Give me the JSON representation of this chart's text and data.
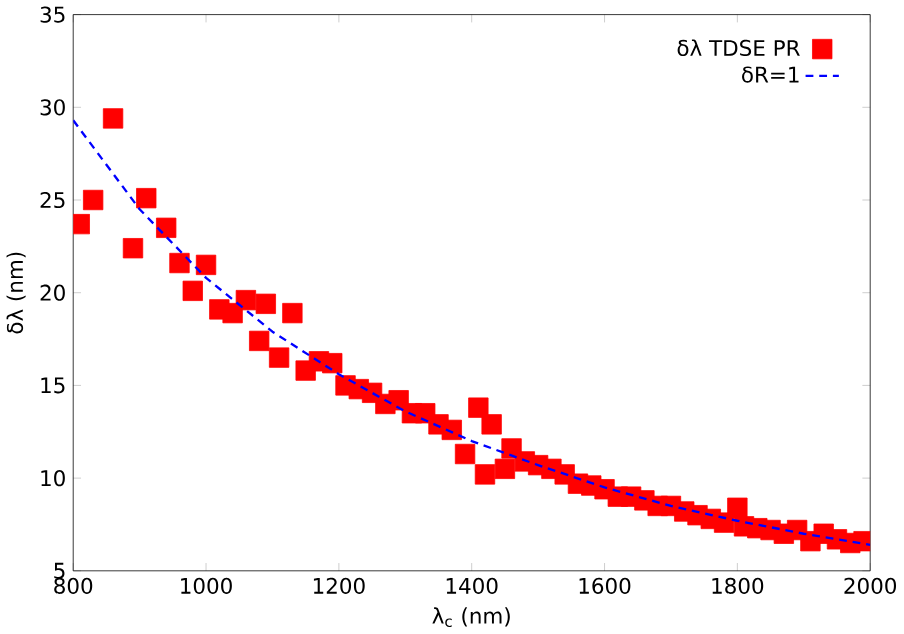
{
  "chart_data": {
    "type": "scatter",
    "xlabel": "λ$_{c}$ (nm)",
    "ylabel": "δλ (nm)",
    "xlim": [
      800,
      2000
    ],
    "ylim": [
      5,
      35
    ],
    "xticks": [
      800,
      1000,
      1200,
      1400,
      1600,
      1800,
      2000
    ],
    "yticks": [
      5,
      10,
      15,
      20,
      25,
      30,
      35
    ],
    "legend": "top right",
    "grid": false,
    "series": [
      {
        "name": "δλ TDSE PR",
        "color": "#ff0000",
        "marker": "square",
        "x": [
          810,
          830,
          860,
          890,
          910,
          940,
          960,
          980,
          1000,
          1020,
          1040,
          1060,
          1080,
          1090,
          1110,
          1130,
          1150,
          1170,
          1190,
          1210,
          1230,
          1250,
          1270,
          1290,
          1310,
          1330,
          1350,
          1370,
          1390,
          1410,
          1420,
          1430,
          1450,
          1460,
          1480,
          1500,
          1520,
          1540,
          1560,
          1580,
          1600,
          1620,
          1640,
          1660,
          1680,
          1700,
          1720,
          1740,
          1760,
          1780,
          1800,
          1810,
          1830,
          1850,
          1870,
          1890,
          1910,
          1930,
          1950,
          1970,
          1990
        ],
        "values": [
          23.7,
          25.0,
          29.4,
          22.4,
          25.1,
          23.5,
          21.6,
          20.1,
          21.5,
          19.1,
          18.9,
          19.6,
          17.4,
          19.4,
          16.5,
          18.9,
          15.8,
          16.3,
          16.2,
          15.0,
          14.8,
          14.6,
          14.0,
          14.2,
          13.5,
          13.5,
          12.9,
          12.6,
          11.3,
          13.8,
          10.2,
          12.9,
          10.5,
          11.6,
          10.9,
          10.7,
          10.5,
          10.2,
          9.7,
          9.6,
          9.4,
          9.0,
          9.0,
          8.8,
          8.5,
          8.5,
          8.2,
          8.0,
          7.8,
          7.6,
          8.4,
          7.4,
          7.3,
          7.2,
          7.0,
          7.2,
          6.6,
          7.0,
          6.7,
          6.5,
          6.6
        ]
      },
      {
        "name": "δR=1",
        "type": "line",
        "color": "#0000ff",
        "marker": "none",
        "line_style": "dashed",
        "x": [
          800,
          900,
          1000,
          1100,
          1200,
          1300,
          1400,
          1500,
          1600,
          1700,
          1800,
          1900,
          2000
        ],
        "values": [
          29.3,
          24.5,
          20.8,
          17.9,
          15.6,
          13.6,
          12.0,
          10.7,
          9.5,
          8.5,
          7.7,
          7.0,
          6.4
        ]
      }
    ]
  }
}
